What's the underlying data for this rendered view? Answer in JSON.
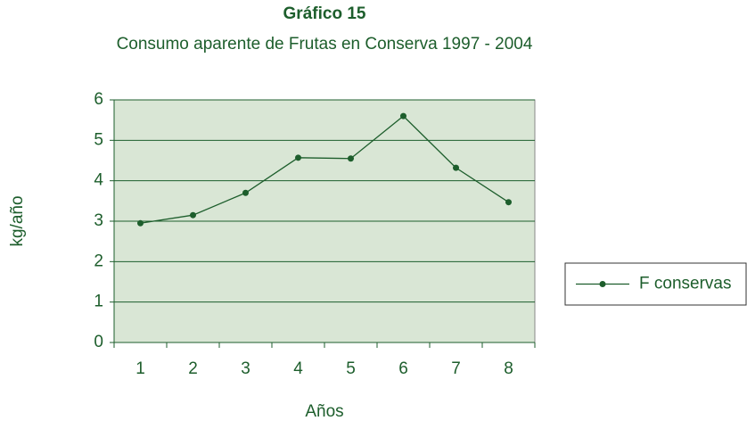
{
  "chart_data": {
    "type": "line",
    "title": "Gráfico 15",
    "subtitle": "Consumo aparente de Frutas en Conserva 1997 - 2004",
    "x_label": "Años",
    "y_label": "kg/año",
    "categories": [
      "1",
      "2",
      "3",
      "4",
      "5",
      "6",
      "7",
      "8"
    ],
    "series": [
      {
        "name": "F conservas",
        "color": "#1d5e2c",
        "values": [
          2.95,
          3.15,
          3.7,
          4.57,
          4.55,
          5.6,
          4.32,
          3.47
        ]
      }
    ],
    "ylim": [
      0,
      6
    ],
    "yticks": [
      0,
      1,
      2,
      3,
      4,
      5,
      6
    ],
    "grid": true,
    "legend": "right"
  }
}
